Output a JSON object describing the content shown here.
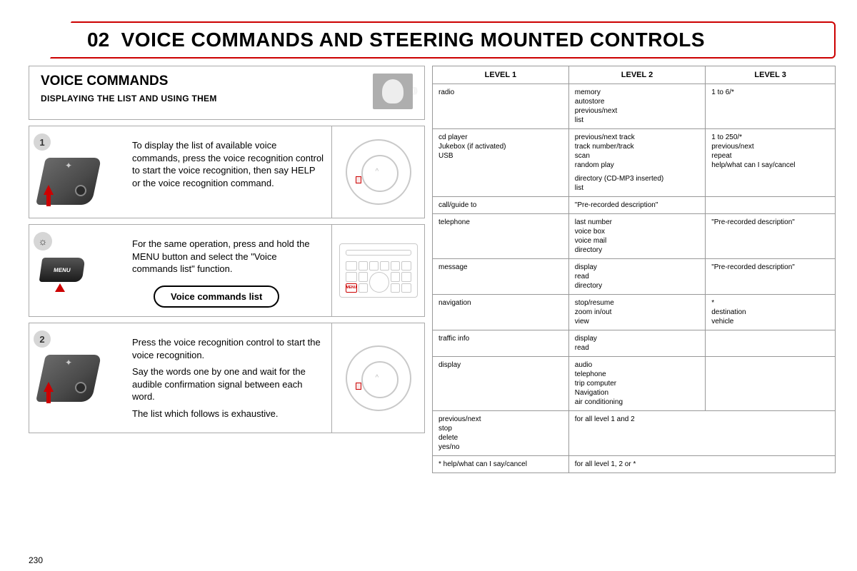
{
  "page_number": "230",
  "title": {
    "number": "02",
    "text": "VOICE COMMANDS AND STEERING MOUNTED CONTROLS"
  },
  "left": {
    "section_title": "VOICE COMMANDS",
    "section_subtitle": "DISPLAYING THE LIST AND USING THEM",
    "step1": {
      "badge": "1",
      "text": "To display the list of available voice commands, press the voice recognition control to start the voice recognition, then say HELP or the voice recognition command."
    },
    "tip": {
      "text": "For the same operation, press and hold the MENU button and select the \"Voice commands list\" function.",
      "pill": "Voice commands list",
      "menu_label": "MENU"
    },
    "step2": {
      "badge": "2",
      "p1": "Press the voice recognition control to start the voice recognition.",
      "p2": "Say the words one by one and wait for the audible confirmation signal between each word.",
      "p3": "The list which follows is exhaustive."
    }
  },
  "table": {
    "headers": [
      "LEVEL 1",
      "LEVEL 2",
      "LEVEL 3"
    ],
    "rows": [
      {
        "c1": [
          "radio"
        ],
        "c2": [
          "memory",
          "autostore",
          "previous/next",
          "list"
        ],
        "c3": [
          "1 to 6/*"
        ]
      },
      {
        "c1": [
          "cd player",
          "Jukebox (if activated)",
          "USB"
        ],
        "c2": [
          "previous/next track",
          "track number/track",
          "scan",
          "random play",
          "",
          "directory (CD-MP3 inserted)",
          "list"
        ],
        "c3": [
          "1 to 250/*",
          "previous/next",
          "repeat",
          "help/what can I say/cancel"
        ]
      },
      {
        "c1": [
          "call/guide to"
        ],
        "c2": [
          "\"Pre-recorded description\""
        ],
        "c3": []
      },
      {
        "c1": [
          "telephone"
        ],
        "c2": [
          "last number",
          "voice box",
          "voice mail",
          "directory"
        ],
        "c3": [
          "\"Pre-recorded description\""
        ]
      },
      {
        "c1": [
          "message"
        ],
        "c2": [
          "display",
          "read",
          "directory"
        ],
        "c3": [
          "\"Pre-recorded description\""
        ]
      },
      {
        "c1": [
          "navigation"
        ],
        "c2": [
          "stop/resume",
          "zoom in/out",
          "view"
        ],
        "c3": [
          "*",
          "destination",
          "vehicle"
        ]
      },
      {
        "c1": [
          "traffic info"
        ],
        "c2": [
          "display",
          "read"
        ],
        "c3": []
      },
      {
        "c1": [
          "display"
        ],
        "c2": [
          "audio",
          "telephone",
          "trip computer",
          "Navigation",
          "air conditioning"
        ],
        "c3": []
      },
      {
        "c1": [
          "previous/next",
          "stop",
          "delete",
          "yes/no"
        ],
        "c2": [
          "for all level 1 and 2"
        ],
        "c3": []
      },
      {
        "c1": [
          "* help/what can I say/cancel"
        ],
        "c2": [
          "for all level 1, 2 or *"
        ],
        "c3": []
      }
    ]
  },
  "colors": {
    "accent_red": "#c00",
    "border_gray": "#aaa",
    "table_border": "#999",
    "badge_bg": "#d6d6d6",
    "voice_icon_bg": "#aeaeae"
  }
}
